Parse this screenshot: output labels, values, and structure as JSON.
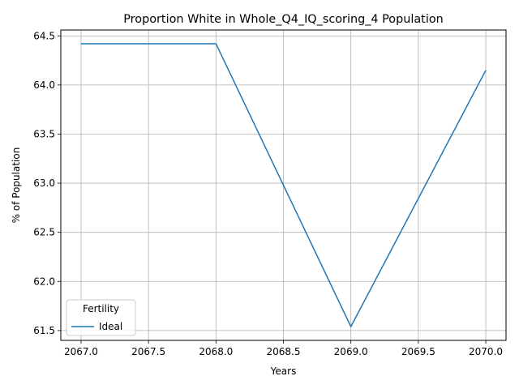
{
  "chart_data": {
    "type": "line",
    "title": "Proportion White in Whole_Q4_IQ_scoring_4 Population",
    "xlabel": "Years",
    "ylabel": "% of Population",
    "x": [
      2067,
      2068,
      2069,
      2070
    ],
    "series": [
      {
        "name": "Ideal",
        "color": "#1f77b4",
        "values": [
          64.42,
          64.42,
          61.54,
          64.15
        ]
      }
    ],
    "xlim": [
      2066.85,
      2070.15
    ],
    "ylim": [
      61.4,
      64.56
    ],
    "xticks": [
      2067.0,
      2067.5,
      2068.0,
      2068.5,
      2069.0,
      2069.5,
      2070.0
    ],
    "xtick_labels": [
      "2067.0",
      "2067.5",
      "2068.0",
      "2068.5",
      "2069.0",
      "2069.5",
      "2070.0"
    ],
    "yticks": [
      61.5,
      62.0,
      62.5,
      63.0,
      63.5,
      64.0,
      64.5
    ],
    "ytick_labels": [
      "61.5",
      "62.0",
      "62.5",
      "63.0",
      "63.5",
      "64.0",
      "64.5"
    ],
    "grid": true,
    "legend": {
      "title": "Fertility",
      "placement": "lower-left"
    }
  }
}
